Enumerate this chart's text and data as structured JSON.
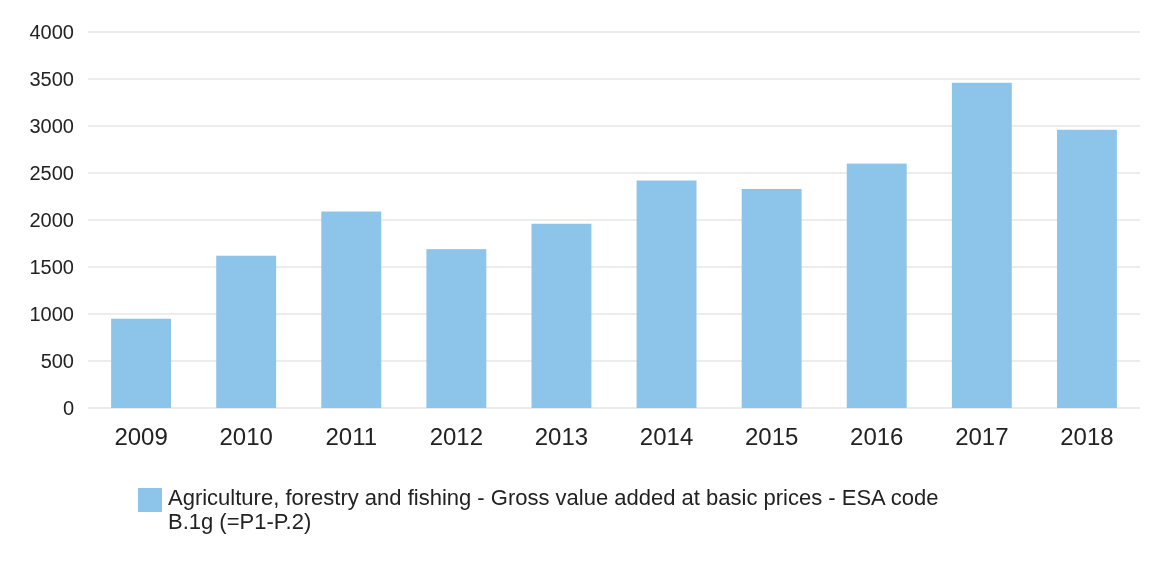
{
  "chart_data": {
    "type": "bar",
    "categories": [
      "2009",
      "2010",
      "2011",
      "2012",
      "2013",
      "2014",
      "2015",
      "2016",
      "2017",
      "2018"
    ],
    "series": [
      {
        "name": "Agriculture, forestry and fishing - Gross value added at basic prices - ESA code B.1g (=P1-P.2)",
        "color": "#8dc4ea",
        "values": [
          950,
          1620,
          2090,
          1690,
          1960,
          2420,
          2330,
          2600,
          3460,
          2960
        ]
      }
    ],
    "ylim": [
      0,
      4000
    ],
    "yticks": [
      0,
      500,
      1000,
      1500,
      2000,
      2500,
      3000,
      3500,
      4000
    ],
    "grid": "y",
    "legend": "bottom"
  }
}
